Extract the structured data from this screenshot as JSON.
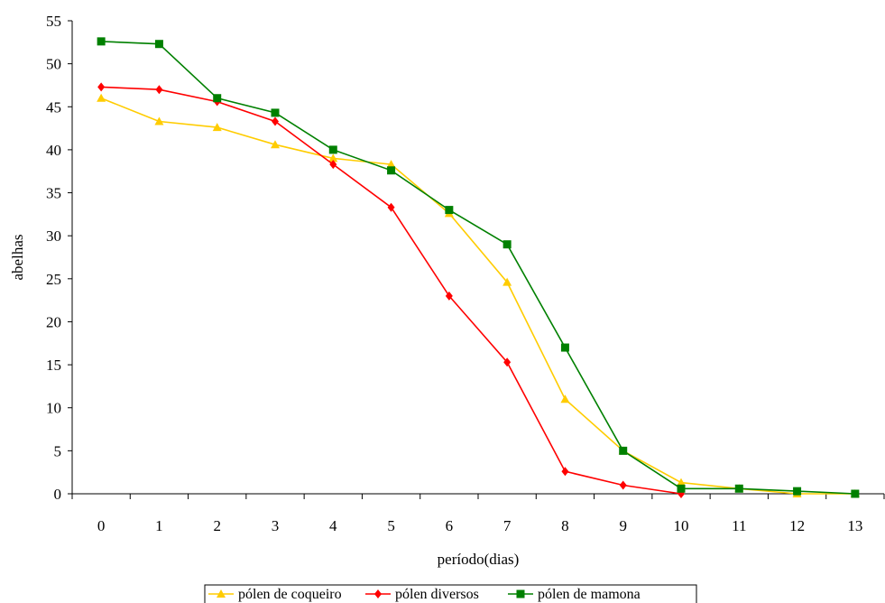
{
  "chart_data": {
    "type": "line",
    "title": "",
    "xlabel": "período(dias)",
    "ylabel": "abelhas",
    "x": [
      0,
      1,
      2,
      3,
      4,
      5,
      6,
      7,
      8,
      9,
      10,
      11,
      12,
      13
    ],
    "xticks": [
      "0",
      "1",
      "2",
      "3",
      "4",
      "5",
      "6",
      "7",
      "8",
      "9",
      "10",
      "11",
      "12",
      "13"
    ],
    "yticks": [
      "0",
      "5",
      "10",
      "15",
      "20",
      "25",
      "30",
      "35",
      "40",
      "45",
      "50",
      "55"
    ],
    "ylim": [
      0,
      55
    ],
    "grid": false,
    "legend_position": "bottom",
    "series": [
      {
        "name": "pólen de coqueiro",
        "color": "#FFCC00",
        "marker": "triangle",
        "values": [
          46.0,
          43.3,
          42.6,
          40.6,
          39.0,
          38.3,
          32.6,
          24.6,
          11.0,
          5.0,
          1.3,
          0.6,
          0.0,
          0.0
        ]
      },
      {
        "name": "pólen diversos",
        "color": "#FF0000",
        "marker": "diamond",
        "values": [
          47.3,
          47.0,
          45.6,
          43.3,
          38.3,
          33.3,
          23.0,
          15.3,
          2.6,
          1.0,
          0.0,
          null,
          null,
          null
        ]
      },
      {
        "name": "pólen de mamona",
        "color": "#008000",
        "marker": "square",
        "values": [
          52.6,
          52.3,
          46.0,
          44.3,
          40.0,
          37.6,
          33.0,
          29.0,
          17.0,
          5.0,
          0.6,
          0.6,
          0.3,
          0.0
        ]
      }
    ]
  }
}
